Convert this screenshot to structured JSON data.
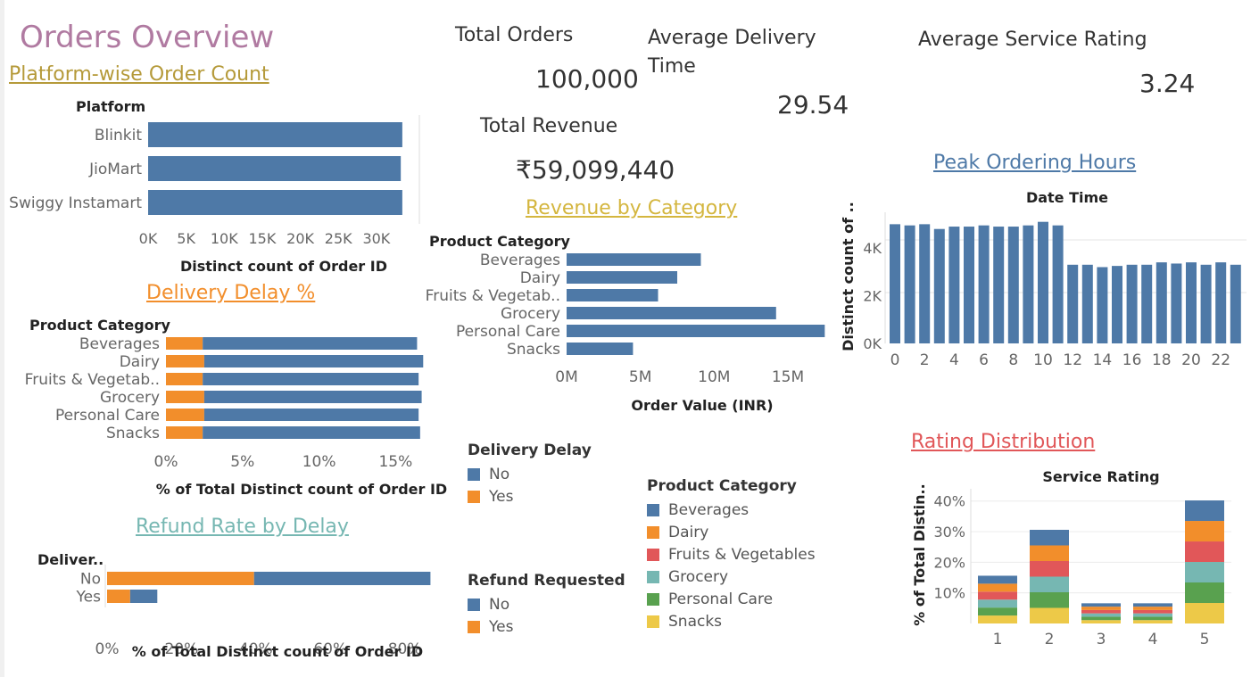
{
  "dashboard": {
    "title": "Orders Overview"
  },
  "kpis": {
    "total_orders_label": "Total Orders",
    "total_orders_value": "100,000",
    "avg_delivery_label_1": "Average Delivery",
    "avg_delivery_label_2": "Time",
    "avg_delivery_value": "29.54",
    "avg_rating_label": "Average Service Rating",
    "avg_rating_value": "3.24",
    "total_revenue_label": "Total Revenue",
    "total_revenue_value": "₹59,099,440"
  },
  "colors": {
    "blue": "#4e79a7",
    "orange": "#f28e2b",
    "red": "#e15759",
    "teal": "#76b7b2",
    "green": "#59a14f",
    "yellow": "#edc948"
  },
  "legends": {
    "delivery_delay": {
      "title": "Delivery Delay",
      "items": [
        {
          "label": "No",
          "color": "#4e79a7"
        },
        {
          "label": "Yes",
          "color": "#f28e2b"
        }
      ]
    },
    "refund_requested": {
      "title": "Refund Requested",
      "items": [
        {
          "label": "No",
          "color": "#4e79a7"
        },
        {
          "label": "Yes",
          "color": "#f28e2b"
        }
      ]
    },
    "product_category": {
      "title": "Product Category",
      "items": [
        {
          "label": "Beverages",
          "color": "#4e79a7"
        },
        {
          "label": "Dairy",
          "color": "#f28e2b"
        },
        {
          "label": "Fruits & Vegetables",
          "color": "#e15759"
        },
        {
          "label": "Grocery",
          "color": "#76b7b2"
        },
        {
          "label": "Personal Care",
          "color": "#59a14f"
        },
        {
          "label": "Snacks",
          "color": "#edc948"
        }
      ]
    }
  },
  "chart_data": [
    {
      "id": "platform",
      "type": "bar",
      "orientation": "horizontal",
      "title": "Platform-wise Order Count",
      "title_color": "#b59a3a",
      "row_header": "Platform",
      "xlabel": "Distinct count of Order ID",
      "categories": [
        "Blinkit",
        "JioMart",
        "Swiggy Instamart"
      ],
      "values": [
        33400,
        33200,
        33400
      ],
      "ticks": [
        "0K",
        "5K",
        "10K",
        "15K",
        "20K",
        "25K",
        "30K"
      ],
      "tick_values": [
        0,
        5000,
        10000,
        15000,
        20000,
        25000,
        30000
      ],
      "xlim": [
        0,
        34000
      ],
      "color": "#4e79a7"
    },
    {
      "id": "delay",
      "type": "bar",
      "orientation": "horizontal",
      "stacked": true,
      "title": "Delivery Delay %",
      "title_color": "#f28e2b",
      "row_header": "Product Category",
      "xlabel": "% of Total Distinct count of Order ID",
      "categories": [
        "Beverages",
        "Dairy",
        "Fruits & Vegetab..",
        "Grocery",
        "Personal Care",
        "Snacks"
      ],
      "series": [
        {
          "name": "Yes",
          "color": "#f28e2b",
          "values": [
            2.4,
            2.5,
            2.4,
            2.5,
            2.5,
            2.4
          ]
        },
        {
          "name": "No",
          "color": "#4e79a7",
          "values": [
            14.0,
            14.3,
            14.1,
            14.2,
            14.0,
            14.2
          ]
        }
      ],
      "ticks": [
        "0%",
        "5%",
        "10%",
        "15%"
      ],
      "tick_values": [
        0,
        5,
        10,
        15
      ],
      "xlim": [
        0,
        16.9
      ]
    },
    {
      "id": "refund",
      "type": "bar",
      "orientation": "horizontal",
      "stacked": true,
      "title": "Refund Rate by Delay",
      "title_color": "#76b7b2",
      "row_header": "Deliver..",
      "xlabel": "% of Total Distinct count of Order ID",
      "categories": [
        "No",
        "Yes"
      ],
      "series": [
        {
          "name": "Yes",
          "color": "#f28e2b",
          "values": [
            39.5,
            6.2
          ]
        },
        {
          "name": "No",
          "color": "#4e79a7",
          "values": [
            47.4,
            7.3
          ]
        }
      ],
      "ticks": [
        "0%",
        "20%",
        "40%",
        "60%",
        "80%"
      ],
      "tick_values": [
        0,
        20,
        40,
        60,
        80
      ],
      "xlim": [
        0,
        88
      ]
    },
    {
      "id": "revenue",
      "type": "bar",
      "orientation": "horizontal",
      "title": "Revenue by Category",
      "title_color": "#d4b63f",
      "row_header": "Product Category",
      "xlabel": "Order Value (INR)",
      "categories": [
        "Beverages",
        "Dairy",
        "Fruits & Vegetab..",
        "Grocery",
        "Personal Care",
        "Snacks"
      ],
      "values": [
        9100000,
        7500000,
        6200000,
        14200000,
        17500000,
        4500000
      ],
      "ticks": [
        "0M",
        "5M",
        "10M",
        "15M"
      ],
      "tick_values": [
        0,
        5000000,
        10000000,
        15000000
      ],
      "xlim": [
        0,
        17600000
      ],
      "color": "#4e79a7"
    },
    {
      "id": "hours",
      "type": "bar",
      "title": "Peak Ordering Hours",
      "title_color": "#4e79a7",
      "subtitle": "Date Time",
      "ylabel": "Distinct count of ..",
      "x": [
        0,
        1,
        2,
        3,
        4,
        5,
        6,
        7,
        8,
        9,
        10,
        11,
        12,
        13,
        14,
        15,
        16,
        17,
        18,
        19,
        20,
        21,
        22,
        23
      ],
      "values": [
        5000,
        4950,
        5000,
        4800,
        4900,
        4900,
        4950,
        4900,
        4900,
        4950,
        5100,
        4950,
        3300,
        3300,
        3200,
        3250,
        3300,
        3300,
        3400,
        3350,
        3400,
        3300,
        3400,
        3300
      ],
      "x_ticks": [
        "0",
        "2",
        "4",
        "6",
        "8",
        "10",
        "12",
        "14",
        "16",
        "18",
        "20",
        "22"
      ],
      "y_ticks": [
        "0K",
        "2K",
        "4K"
      ],
      "y_tick_values": [
        0,
        2000,
        4000
      ],
      "ylim": [
        0,
        5500
      ],
      "color": "#4e79a7"
    },
    {
      "id": "rating",
      "type": "bar",
      "stacked": true,
      "title": "Rating Distribution",
      "title_color": "#e15759",
      "subtitle": "Service Rating",
      "ylabel": "% of Total Distin..",
      "categories": [
        "1",
        "2",
        "3",
        "4",
        "5"
      ],
      "series": [
        {
          "name": "Snacks",
          "color": "#edc948",
          "values": [
            2.6,
            5.1,
            1.1,
            1.1,
            6.7
          ]
        },
        {
          "name": "Personal Care",
          "color": "#59a14f",
          "values": [
            2.6,
            5.1,
            1.1,
            1.1,
            6.7
          ]
        },
        {
          "name": "Grocery",
          "color": "#76b7b2",
          "values": [
            2.6,
            5.1,
            1.1,
            1.1,
            6.7
          ]
        },
        {
          "name": "Fruits & Vegetables",
          "color": "#e15759",
          "values": [
            2.6,
            5.1,
            1.1,
            1.1,
            6.7
          ]
        },
        {
          "name": "Dairy",
          "color": "#f28e2b",
          "values": [
            2.6,
            5.1,
            1.1,
            1.1,
            6.7
          ]
        },
        {
          "name": "Beverages",
          "color": "#4e79a7",
          "values": [
            2.6,
            5.1,
            1.1,
            1.1,
            6.7
          ]
        }
      ],
      "y_ticks": [
        "10%",
        "20%",
        "30%",
        "40%"
      ],
      "y_tick_values": [
        10,
        20,
        30,
        40
      ],
      "ylim": [
        0,
        44
      ]
    }
  ]
}
